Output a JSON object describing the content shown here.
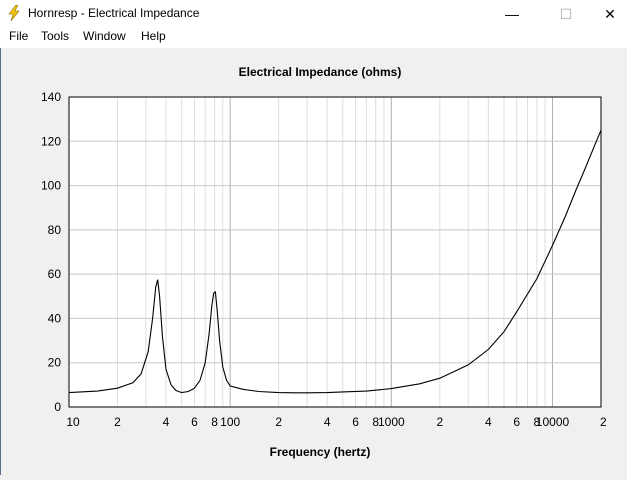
{
  "window": {
    "title": "Hornresp - Electrical Impedance",
    "icon": "lightning-bolt-icon",
    "controls": {
      "minimize": "—",
      "maximize": "☐",
      "close": "✕"
    }
  },
  "menu": [
    "File",
    "Tools",
    "Window",
    "Help"
  ],
  "chart_data": {
    "type": "line",
    "title": "Electrical Impedance (ohms)",
    "xlabel": "Frequency (hertz)",
    "ylabel": "",
    "xscale": "log",
    "xlim": [
      10,
      20000
    ],
    "ylim": [
      0,
      140
    ],
    "grid": true,
    "yticks": [
      0,
      20,
      40,
      60,
      80,
      100,
      120,
      140
    ],
    "xtick_labels": [
      {
        "value": 10,
        "label": "10"
      },
      {
        "value": 20,
        "label": "2"
      },
      {
        "value": 40,
        "label": "4"
      },
      {
        "value": 60,
        "label": "6"
      },
      {
        "value": 80,
        "label": "8"
      },
      {
        "value": 100,
        "label": "100"
      },
      {
        "value": 200,
        "label": "2"
      },
      {
        "value": 400,
        "label": "4"
      },
      {
        "value": 600,
        "label": "6"
      },
      {
        "value": 800,
        "label": "8"
      },
      {
        "value": 1000,
        "label": "1000"
      },
      {
        "value": 2000,
        "label": "2"
      },
      {
        "value": 4000,
        "label": "4"
      },
      {
        "value": 6000,
        "label": "6"
      },
      {
        "value": 8000,
        "label": "8"
      },
      {
        "value": 10000,
        "label": "10000"
      },
      {
        "value": 20000,
        "label": "2"
      }
    ],
    "colors": {
      "line": "#000000",
      "grid": "#c0c0c0",
      "background": "#ffffff"
    },
    "x": [
      10,
      15,
      20,
      25,
      28,
      31,
      33,
      34.5,
      35.5,
      36.5,
      38,
      40,
      43,
      46,
      50,
      55,
      60,
      65,
      70,
      74,
      77,
      79,
      81,
      83,
      86,
      90,
      95,
      100,
      120,
      150,
      200,
      250,
      300,
      400,
      500,
      700,
      1000,
      1500,
      2000,
      3000,
      4000,
      5000,
      6000,
      8000,
      10000,
      12000,
      14000,
      16000,
      18000,
      20000
    ],
    "series": [
      {
        "values": [
          6.5,
          7.2,
          8.5,
          11,
          15,
          25,
          40,
          54,
          57.5,
          50,
          32,
          17,
          10,
          7.5,
          6.5,
          7,
          8.5,
          12,
          20,
          33,
          46,
          51.5,
          52,
          44,
          30,
          18,
          12,
          9.5,
          8,
          7,
          6.5,
          6.4,
          6.4,
          6.5,
          6.8,
          7.2,
          8.3,
          10.5,
          13,
          19,
          26,
          34,
          43,
          58,
          73,
          86,
          98,
          108,
          117,
          125
        ]
      }
    ]
  }
}
